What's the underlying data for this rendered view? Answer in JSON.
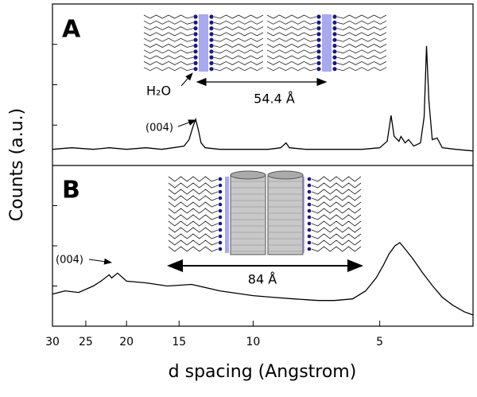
{
  "chart_data": [
    {
      "type": "line",
      "panel_label": "A",
      "ylabel": "Counts (a.u.)",
      "xlim": [
        30,
        3
      ],
      "log_x": true,
      "ylim": [
        0,
        100
      ],
      "yticks": [
        25,
        50,
        75
      ],
      "series": [
        {
          "color": "#000000",
          "x": [
            30,
            27,
            24,
            22,
            20,
            18,
            16.5,
            15.5,
            14.6,
            14.2,
            13.9,
            13.7,
            13.5,
            13.3,
            13,
            12,
            11,
            10,
            9.2,
            8.6,
            8.35,
            8.2,
            7.5,
            6.5,
            5.5,
            5,
            4.8,
            4.7,
            4.62,
            4.5,
            4.45,
            4.35,
            4.27,
            4.15,
            4.0,
            3.92,
            3.87,
            3.82,
            3.75,
            3.65,
            3.55,
            3.3,
            3.0
          ],
          "values": [
            10,
            11,
            10,
            11,
            10,
            11,
            10,
            11,
            12,
            16,
            24,
            28.6,
            22,
            14,
            11,
            10,
            10,
            10,
            10,
            11,
            14,
            11,
            10,
            10,
            10,
            11,
            15,
            31,
            18,
            15,
            18,
            14,
            16,
            12,
            14,
            30,
            74,
            40,
            16,
            17,
            11,
            10,
            9
          ]
        }
      ],
      "annotations": [
        "(004)",
        "H₂O",
        "54.4 Å"
      ]
    },
    {
      "type": "line",
      "panel_label": "B",
      "xlabel": "d spacing (Angstrom)",
      "xlim": [
        30,
        3
      ],
      "log_x": true,
      "xticks": [
        30,
        25,
        20,
        15,
        10,
        5
      ],
      "ylim": [
        0,
        100
      ],
      "yticks": [
        25,
        50,
        75
      ],
      "series": [
        {
          "color": "#000000",
          "x": [
            30,
            28,
            26,
            24,
            23,
            22,
            21.7,
            21,
            20,
            18,
            16,
            14,
            12,
            10,
            9,
            8,
            7,
            6.4,
            5.8,
            5.4,
            5.1,
            4.9,
            4.75,
            4.6,
            4.48,
            4.35,
            4.17,
            3.95,
            3.74,
            3.55,
            3.35,
            3.15,
            3.0
          ],
          "values": [
            20,
            22,
            21,
            25,
            28,
            32,
            30,
            33,
            28,
            27,
            25,
            26,
            22,
            19,
            18,
            17,
            16,
            16,
            17,
            22,
            30,
            38,
            45,
            50,
            52,
            48,
            42,
            33,
            25,
            18,
            13,
            9,
            7
          ]
        }
      ],
      "annotations": [
        "(004)",
        "84 Å"
      ]
    }
  ]
}
